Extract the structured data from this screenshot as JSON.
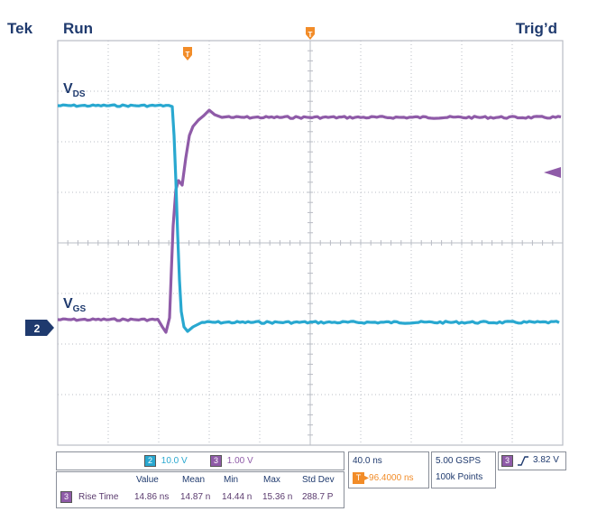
{
  "header": {
    "brand": "Tek",
    "run_state": "Run",
    "trig_state": "Trig’d"
  },
  "colors": {
    "ch2": "#29a8d0",
    "ch3": "#8f5ba8",
    "grid": "#b9bcc4",
    "trigger": "#f28c28",
    "text": "#1f3a6e"
  },
  "markers": {
    "trig_pos_icon": "trigger-position-marker",
    "trig_T": "T"
  },
  "traces": {
    "vds_label_main": "V",
    "vds_label_sub": "DS",
    "vgs_label_main": "V",
    "vgs_label_sub": "GS"
  },
  "ground_marker": {
    "label": "2"
  },
  "channels": {
    "ch2": {
      "number": "2",
      "scale": "10.0 V"
    },
    "ch3": {
      "number": "3",
      "scale": "1.00 V"
    }
  },
  "timebase": {
    "scale": "40.0 ns",
    "trig_icon": "T",
    "position": "▸96.4000 ns"
  },
  "acquisition": {
    "rate": "5.00 GSPS",
    "record": "100k Points"
  },
  "trigger": {
    "channel": "3",
    "slope_icon": "rising-edge-icon",
    "level": "3.82 V"
  },
  "measurements": {
    "headers": [
      "Value",
      "Mean",
      "Min",
      "Max",
      "Std Dev"
    ],
    "rows": [
      {
        "channel": "3",
        "name": "Rise Time",
        "value": "14.86 ns",
        "mean": "14.87 n",
        "min": "14.44 n",
        "max": "15.36 n",
        "std": "288.7 P"
      }
    ]
  }
}
